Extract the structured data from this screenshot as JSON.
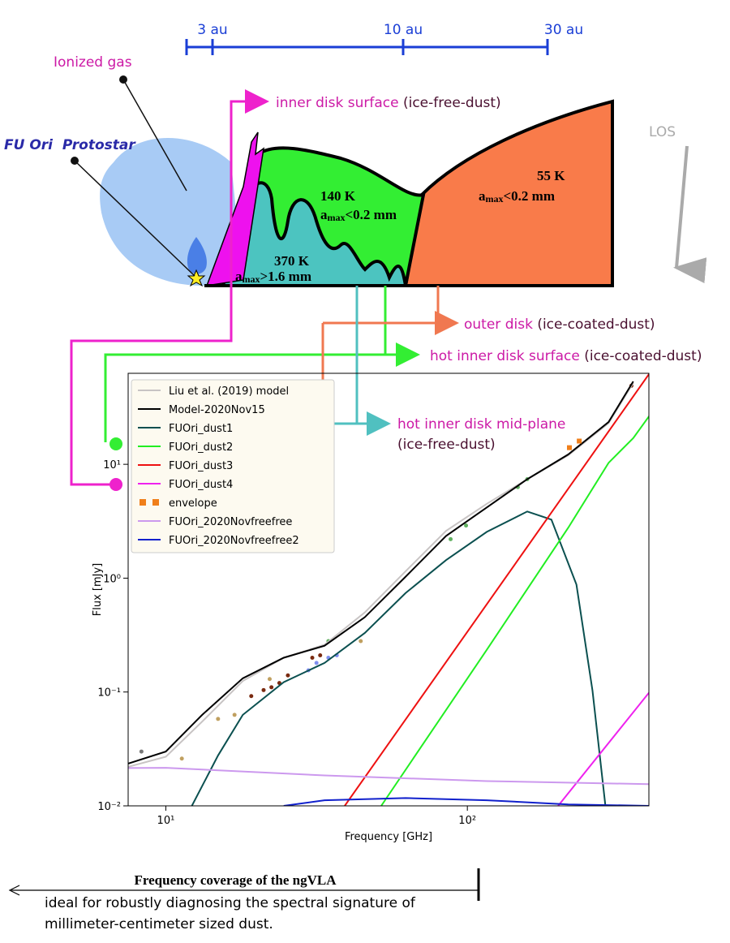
{
  "diagram": {
    "scale": [
      "3 au",
      "10 au",
      "30 au"
    ],
    "ionized_gas": "Ionized gas",
    "protostar": "FU Ori  Protostar",
    "los": "LOS",
    "regions": [
      {
        "temperature": "55 K",
        "amax": {
          "symbol": "a",
          "sub": "max",
          "rest": "<0.2 mm"
        }
      },
      {
        "temperature": "140 K",
        "amax": {
          "symbol": "a",
          "sub": "max",
          "rest": "<0.2 mm"
        }
      },
      {
        "temperature": "370 K",
        "amax": {
          "symbol": "a",
          "sub": "max",
          "rest": ">1.6 mm"
        }
      }
    ],
    "components": [
      {
        "name": "inner disk surface",
        "dust": "(ice-free-dust)"
      },
      {
        "name": "outer disk",
        "dust": "(ice-coated-dust)"
      },
      {
        "name": "hot inner disk surface",
        "dust": "(ice-coated-dust)"
      },
      {
        "name": "hot inner disk mid-plane",
        "dust": "(ice-free-dust)"
      }
    ]
  },
  "chart_data": {
    "type": "line",
    "xlabel": "Frequency [GHz]",
    "ylabel": "Flux [mJy]",
    "xscale": "log",
    "yscale": "log",
    "xlim": [
      7.5,
      400
    ],
    "ylim": [
      0.01,
      63
    ],
    "xticks": [
      {
        "value": 10,
        "label": "10¹"
      },
      {
        "value": 100,
        "label": "10²"
      }
    ],
    "yticks": [
      {
        "value": 0.01,
        "label": "10⁻²"
      },
      {
        "value": 0.1,
        "label": "10⁻¹"
      },
      {
        "value": 1,
        "label": "10⁰"
      },
      {
        "value": 10,
        "label": "10¹"
      }
    ],
    "legend": "upper left",
    "series": [
      {
        "name": "Liu et al. (2019) model",
        "color": "#c8c4c4",
        "x": [
          7.5,
          10,
          13.2,
          18,
          24.6,
          33.6,
          45.7,
          62.4,
          85,
          116,
          158,
          216,
          294,
          355
        ],
        "values": [
          0.022,
          0.027,
          0.055,
          0.125,
          0.2,
          0.26,
          0.5,
          1.15,
          2.6,
          4.5,
          7.4,
          12,
          23,
          52
        ]
      },
      {
        "name": "Model-2020Nov15",
        "color": "#000000",
        "x": [
          7.5,
          10,
          13.2,
          18,
          24.6,
          33.6,
          45.7,
          62.4,
          85,
          116,
          158,
          216,
          294,
          355
        ],
        "values": [
          0.0235,
          0.03,
          0.063,
          0.132,
          0.2,
          0.255,
          0.454,
          1.03,
          2.35,
          4.18,
          7.4,
          12.2,
          23.5,
          53.5
        ]
      },
      {
        "name": "FUOri_dust1",
        "color": "#0b5050",
        "x": [
          12.2,
          14.9,
          18,
          24.6,
          33.6,
          45.7,
          62.4,
          85,
          116,
          158,
          190,
          230,
          260,
          287
        ],
        "values": [
          0.01,
          0.0277,
          0.063,
          0.122,
          0.18,
          0.33,
          0.74,
          1.44,
          2.55,
          3.85,
          3.27,
          0.88,
          0.103,
          0.01
        ]
      },
      {
        "name": "FUOri_dust2",
        "color": "#22ee22",
        "x": [
          51.8,
          116,
          216,
          294,
          355,
          402
        ],
        "values": [
          0.01,
          0.235,
          2.77,
          10.3,
          17,
          26.8
        ]
      },
      {
        "name": "FUOri_dust3",
        "color": "#ee1111",
        "x": [
          39.2,
          402
        ],
        "values": [
          0.01,
          63
        ]
      },
      {
        "name": "FUOri_dust4",
        "color": "#ee22ee",
        "x": [
          200,
          402
        ],
        "values": [
          0.01,
          0.1
        ]
      },
      {
        "name": "envelope",
        "color": "#f07f1a",
        "marker": "square",
        "x": [
          218,
          235
        ],
        "values": [
          14,
          16
        ]
      },
      {
        "name": "FUOri_2020Novfreefree",
        "color": "#cc99ee",
        "x": [
          7.5,
          10,
          33.6,
          116,
          402
        ],
        "values": [
          0.0215,
          0.0216,
          0.0185,
          0.0165,
          0.0155
        ]
      },
      {
        "name": "FUOri_2020Novfreefree2",
        "color": "#1020cc",
        "x": [
          24.6,
          33.6,
          62.4,
          116,
          216,
          402
        ],
        "values": [
          0.01,
          0.0112,
          0.0117,
          0.0112,
          0.0103,
          0.01
        ]
      }
    ],
    "observations": [
      {
        "color": "#777777",
        "x": [
          8.3
        ],
        "values": [
          0.03
        ]
      },
      {
        "color": "#c0a060",
        "x": [
          11.3,
          14.9,
          16.9,
          22.1,
          44.3
        ],
        "values": [
          0.026,
          0.058,
          0.063,
          0.13,
          0.28
        ]
      },
      {
        "color": "#7a2a10",
        "x": [
          19.2,
          21.1,
          22.4,
          23.8,
          25.4,
          30.6,
          32.5,
          350
        ],
        "values": [
          0.092,
          0.104,
          0.11,
          0.12,
          0.14,
          0.2,
          0.21,
          49
        ]
      },
      {
        "color": "#8090f0",
        "x": [
          29.7,
          31.6,
          34.6,
          36.9
        ],
        "values": [
          0.155,
          0.18,
          0.2,
          0.21
        ]
      },
      {
        "color": "#60b060",
        "x": [
          34.6,
          88,
          99,
          147,
          158
        ],
        "values": [
          0.28,
          2.2,
          2.9,
          6.3,
          7.4
        ]
      }
    ]
  },
  "footer": {
    "arrow_label": "Frequency coverage of the ngVLA",
    "lines": [
      "ideal for robustly diagnosing the spectral signature of",
      "millimeter-centimeter sized dust."
    ]
  }
}
